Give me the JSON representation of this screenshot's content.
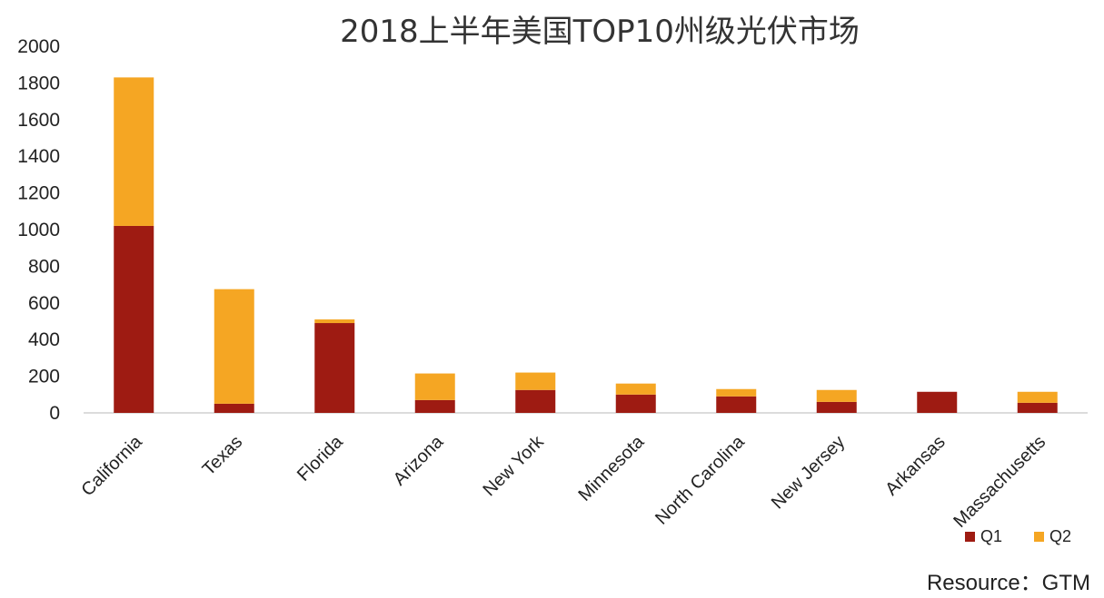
{
  "chart_data": {
    "type": "bar",
    "stacked": true,
    "title": "2018上半年美国TOP10州级光伏市场",
    "categories": [
      "California",
      "Texas",
      "Florida",
      "Arizona",
      "New York",
      "Minnesota",
      "North Carolina",
      "New Jersey",
      "Arkansas",
      "Massachusetts"
    ],
    "series": [
      {
        "name": "Q1",
        "color": "#9e1b12",
        "values": [
          1020,
          50,
          490,
          70,
          125,
          100,
          90,
          60,
          115,
          55
        ]
      },
      {
        "name": "Q2",
        "color": "#f5a623",
        "values": [
          810,
          625,
          20,
          145,
          95,
          60,
          40,
          65,
          0,
          60
        ]
      }
    ],
    "ylim": [
      0,
      2000
    ],
    "yticks": [
      "0",
      "200",
      "400",
      "600",
      "800",
      "1000",
      "1200",
      "1400",
      "1600",
      "1800",
      "2000"
    ],
    "xlabel": "",
    "ylabel": "",
    "grid": false,
    "legend_position": "bottom-right",
    "source": "Resource：GTM"
  }
}
